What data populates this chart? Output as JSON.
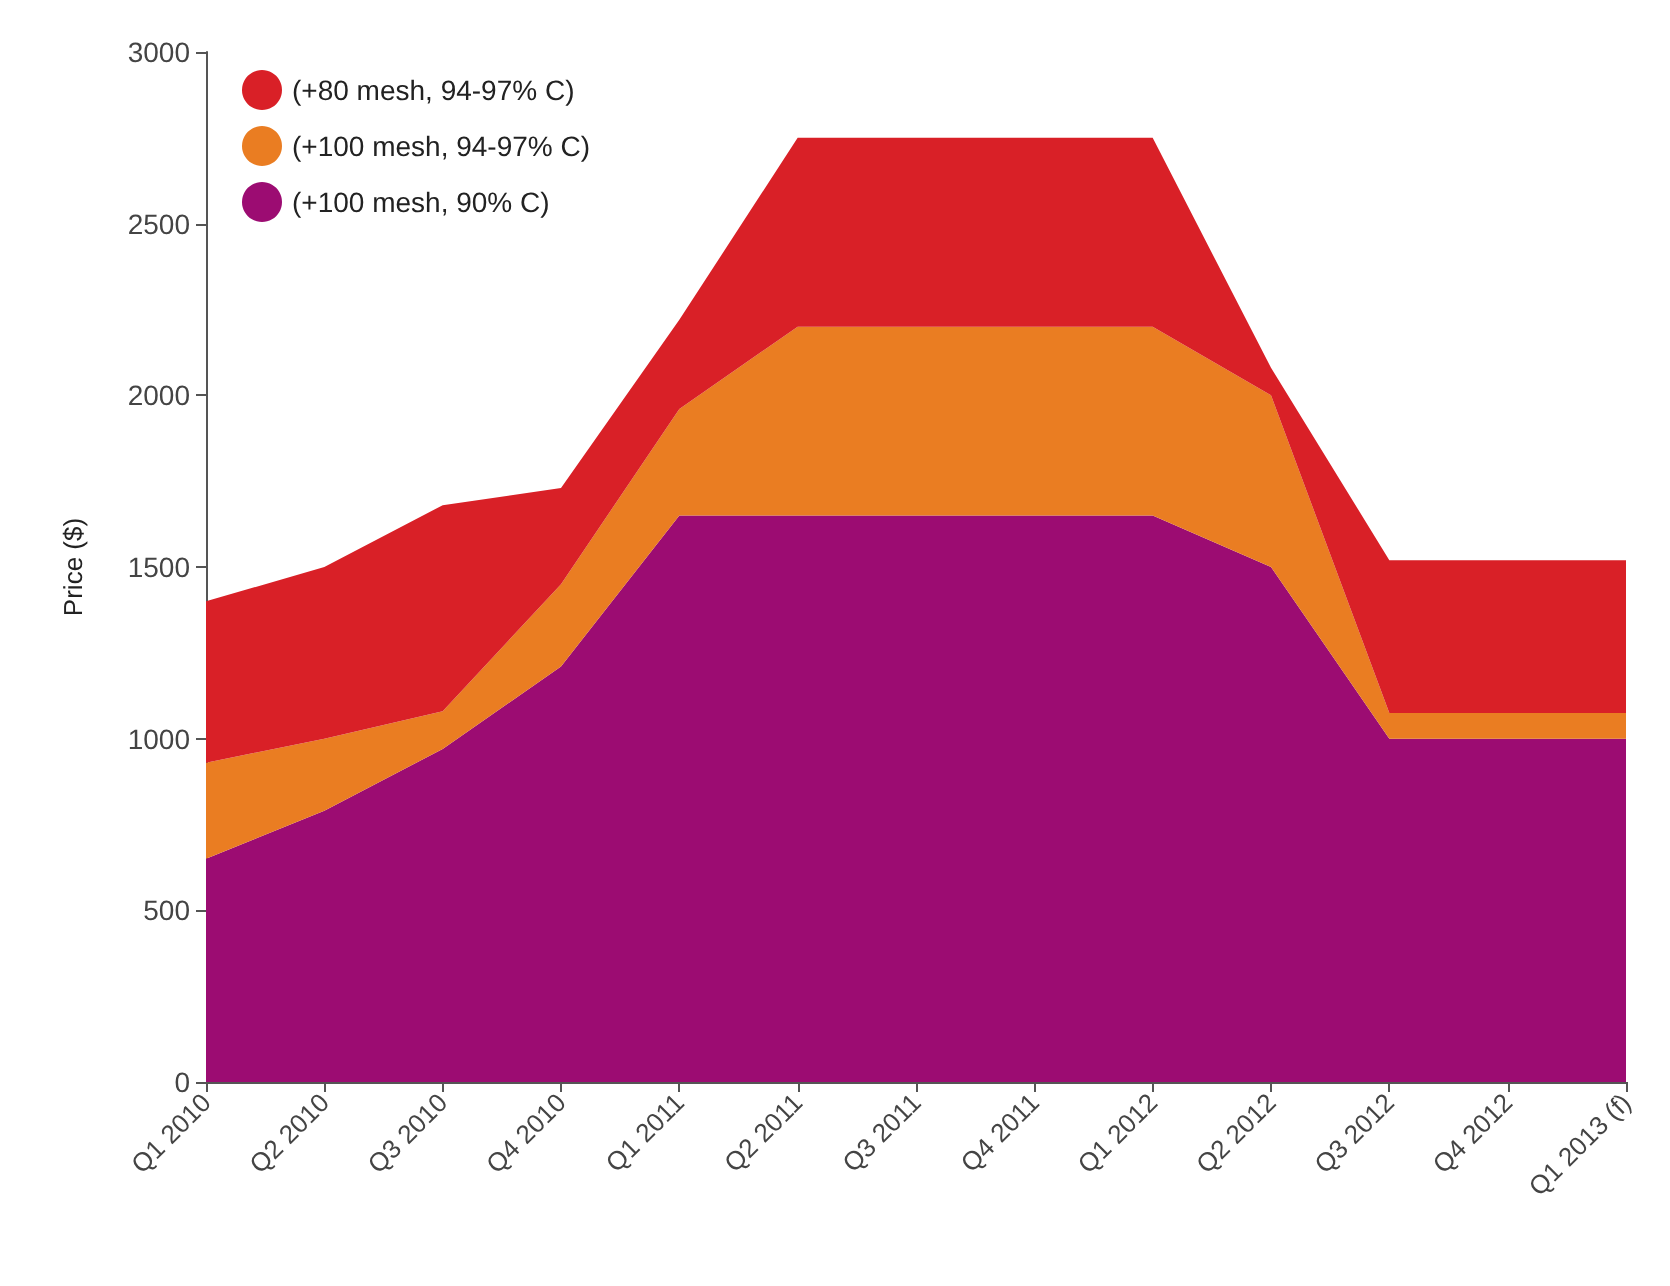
{
  "chart_data": {
    "type": "area",
    "ylabel": "Price ($)",
    "stacked": true,
    "categories": [
      "Q1 2010",
      "Q2 2010",
      "Q3 2010",
      "Q4 2010",
      "Q1 2011",
      "Q2 2011",
      "Q3 2011",
      "Q4 2011",
      "Q1 2012",
      "Q2 2012",
      "Q3 2012",
      "Q4 2012",
      "Q1 2013 (f)"
    ],
    "series": [
      {
        "name": "(+100 mesh, 90% C)",
        "color": "#9c0c72",
        "values": [
          650,
          790,
          970,
          1210,
          1650,
          1650,
          1650,
          1650,
          1650,
          1500,
          1000,
          1000,
          1000
        ]
      },
      {
        "name": "(+100 mesh, 94-97% C)",
        "color": "#ea7d22",
        "values": [
          280,
          210,
          110,
          240,
          310,
          550,
          550,
          550,
          550,
          500,
          75,
          75,
          75
        ]
      },
      {
        "name": "(+80 mesh, 94-97% C)",
        "color": "#d92027",
        "values": [
          470,
          500,
          600,
          280,
          260,
          550,
          550,
          550,
          550,
          80,
          445,
          445,
          445
        ]
      }
    ],
    "ylim": [
      0,
      3000
    ],
    "yticks": [
      0,
      500,
      1000,
      1500,
      2000,
      2500,
      3000
    ],
    "legend": "top left",
    "grid": false
  }
}
